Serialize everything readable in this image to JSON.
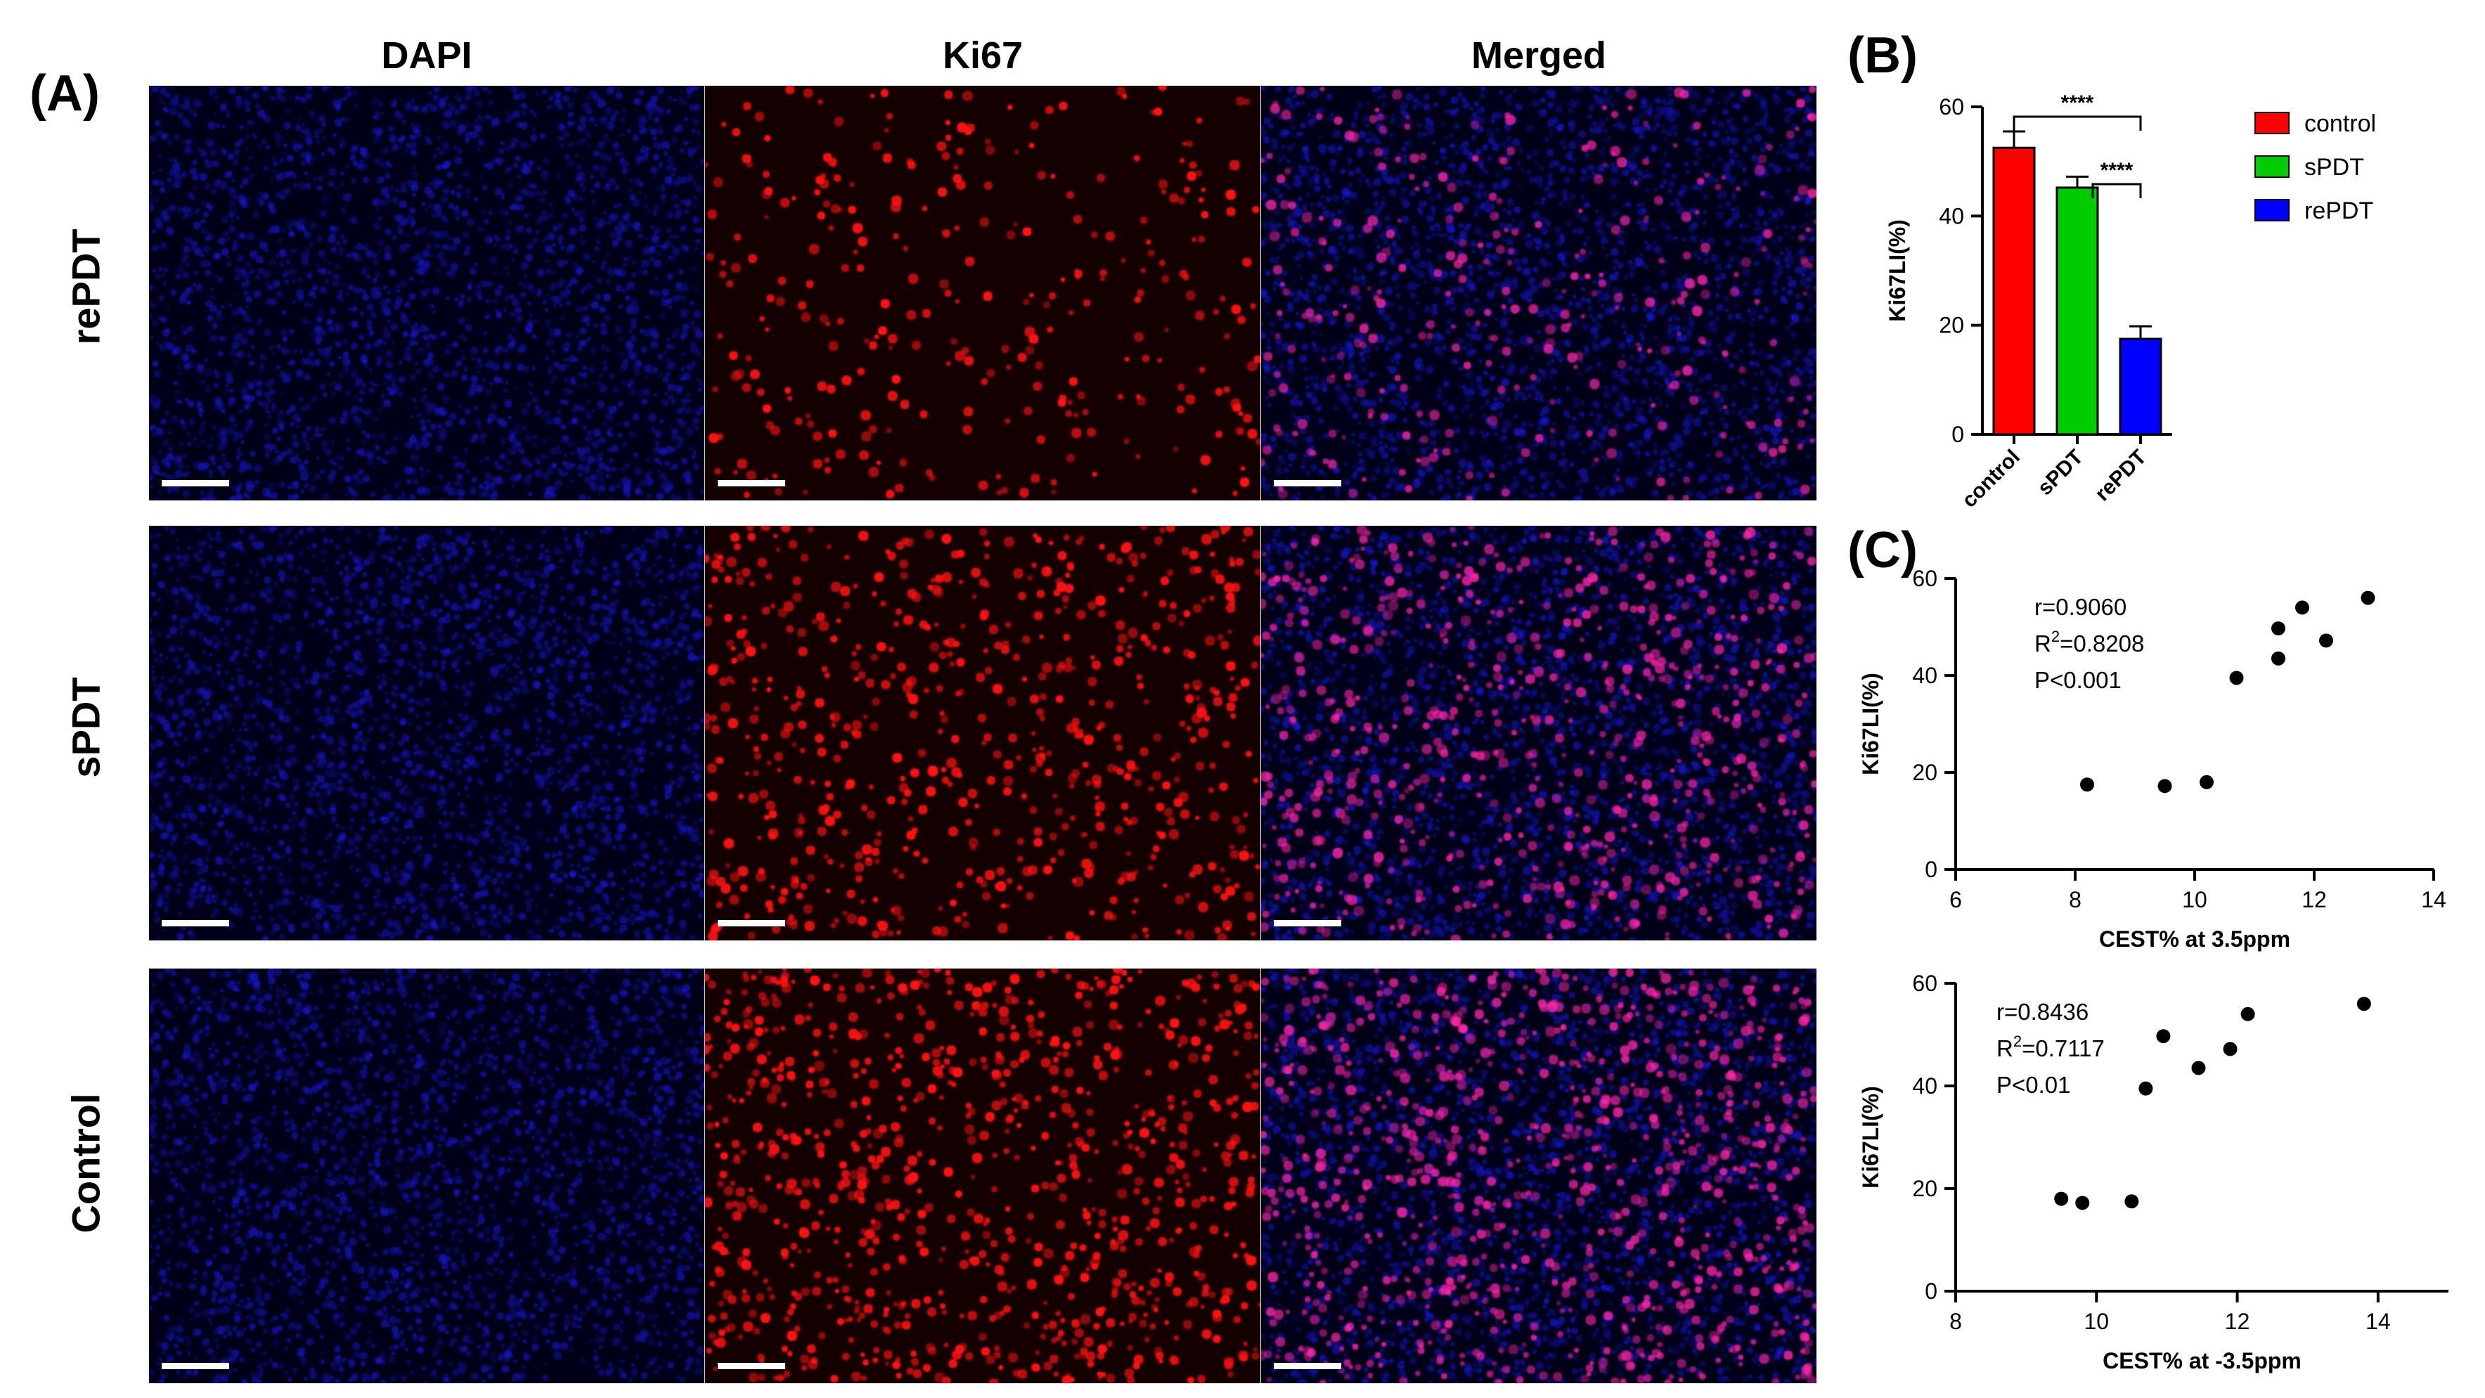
{
  "panel_labels": {
    "A": "(A)",
    "B": "(B)",
    "C": "(C)"
  },
  "micrographs": {
    "columns": [
      "DAPI",
      "Ki67",
      "Merged"
    ],
    "rows": [
      {
        "label": "rePDT",
        "red_level": 0.35
      },
      {
        "label": "sPDT",
        "red_level": 0.75
      },
      {
        "label": "Control",
        "red_level": 1.0
      }
    ],
    "colors": {
      "dapi": "#1a1aff",
      "ki67": "#ff1a1a",
      "merged": "#ff2aa8",
      "scalebar": "#ffffff"
    }
  },
  "chart_data": [
    {
      "type": "bar",
      "categories": [
        "control",
        "sPDT",
        "rePDT"
      ],
      "values": [
        52.5,
        45.2,
        17.5
      ],
      "errors": [
        3.0,
        2.0,
        2.3
      ],
      "colors": [
        "#ff0000",
        "#00cc00",
        "#0000ff"
      ],
      "ylabel": "Ki67LI(%)",
      "ylim": [
        0,
        60
      ],
      "yticks": [
        "0",
        "20",
        "40",
        "60"
      ],
      "legend": [
        "control",
        "sPDT",
        "rePDT"
      ],
      "legend_position": "right",
      "significance": [
        {
          "between": [
            "control",
            "rePDT"
          ],
          "label": "****"
        },
        {
          "between": [
            "sPDT",
            "rePDT"
          ],
          "label": "****"
        }
      ]
    },
    {
      "type": "scatter",
      "xlabel": "CEST% at 3.5ppm",
      "ylabel": "Ki67LI(%)",
      "xlim": [
        6,
        14
      ],
      "ylim": [
        0,
        60
      ],
      "xticks": [
        "6",
        "8",
        "10",
        "12",
        "14"
      ],
      "yticks": [
        "0",
        "20",
        "40",
        "60"
      ],
      "points": [
        {
          "x": 8.2,
          "y": 17.5
        },
        {
          "x": 9.5,
          "y": 17.2
        },
        {
          "x": 10.2,
          "y": 18.0
        },
        {
          "x": 10.7,
          "y": 39.5
        },
        {
          "x": 11.4,
          "y": 43.5
        },
        {
          "x": 11.4,
          "y": 49.7
        },
        {
          "x": 11.8,
          "y": 54.0
        },
        {
          "x": 12.2,
          "y": 47.2
        },
        {
          "x": 12.9,
          "y": 56.0
        }
      ],
      "stats": {
        "r": "r=0.9060",
        "r2_prefix": "R",
        "r2_sup": "2",
        "r2_value": "=0.8208",
        "p": "P<0.001"
      }
    },
    {
      "type": "scatter",
      "xlabel": "CEST% at -3.5ppm",
      "ylabel": "Ki67LI(%)",
      "xlim": [
        8,
        15
      ],
      "ylim": [
        0,
        60
      ],
      "xticks": [
        "8",
        "10",
        "12",
        "14"
      ],
      "yticks": [
        "0",
        "20",
        "40",
        "60"
      ],
      "points": [
        {
          "x": 9.5,
          "y": 18.0
        },
        {
          "x": 9.8,
          "y": 17.2
        },
        {
          "x": 10.5,
          "y": 17.5
        },
        {
          "x": 10.7,
          "y": 39.5
        },
        {
          "x": 10.95,
          "y": 49.7
        },
        {
          "x": 11.45,
          "y": 43.5
        },
        {
          "x": 11.9,
          "y": 47.2
        },
        {
          "x": 12.15,
          "y": 54.0
        },
        {
          "x": 13.8,
          "y": 56.0
        }
      ],
      "stats": {
        "r": "r=0.8436",
        "r2_prefix": "R",
        "r2_sup": "2",
        "r2_value": "=0.7117",
        "p": "P<0.01"
      }
    }
  ]
}
